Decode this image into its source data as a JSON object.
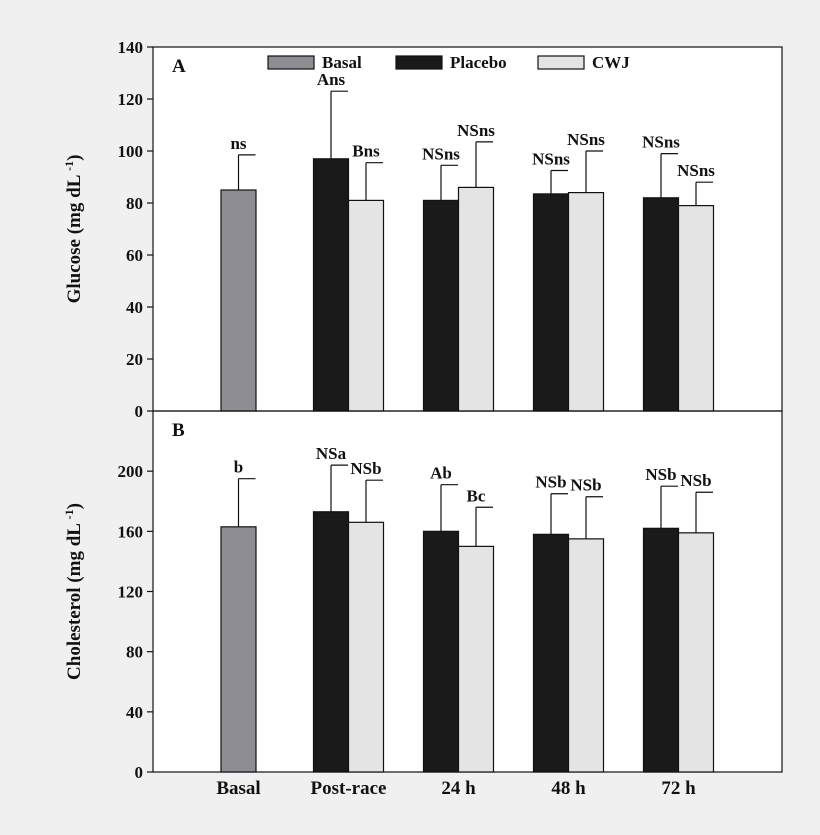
{
  "chart_data": [
    {
      "type": "bar",
      "panel_label": "A",
      "ylabel_text": "Glucose (mg dL",
      "ylabel_sup": "-1",
      "ylabel_close": ")",
      "ylim": [
        0,
        140
      ],
      "yticks": [
        0,
        20,
        40,
        60,
        80,
        100,
        120,
        140
      ],
      "categories": [
        "Basal",
        "Post-race",
        "24 h",
        "48 h",
        "72 h"
      ],
      "legend_placement": "top",
      "grid": false,
      "series": [
        {
          "name": "Basal",
          "values": [
            85,
            null,
            null,
            null,
            null
          ],
          "errors": [
            13.5,
            null,
            null,
            null,
            null
          ],
          "labels": [
            "ns",
            null,
            null,
            null,
            null
          ]
        },
        {
          "name": "Placebo",
          "values": [
            null,
            97,
            81,
            83.5,
            82
          ],
          "errors": [
            null,
            26,
            13.5,
            9,
            17
          ],
          "labels": [
            null,
            "Ans",
            "NSns",
            "NSns",
            "NSns"
          ]
        },
        {
          "name": "CWJ",
          "values": [
            null,
            81,
            86,
            84,
            79
          ],
          "errors": [
            null,
            14.5,
            17.5,
            16,
            9
          ],
          "labels": [
            null,
            "Bns",
            "NSns",
            "NSns",
            "NSns"
          ]
        }
      ]
    },
    {
      "type": "bar",
      "panel_label": "B",
      "ylabel_text": "Cholesterol (mg dL",
      "ylabel_sup": "-1",
      "ylabel_close": ")",
      "ylim": [
        0,
        240
      ],
      "yticks": [
        0,
        40,
        80,
        120,
        160,
        200
      ],
      "categories": [
        "Basal",
        "Post-race",
        "24 h",
        "48 h",
        "72 h"
      ],
      "grid": false,
      "series": [
        {
          "name": "Basal",
          "values": [
            163,
            null,
            null,
            null,
            null
          ],
          "errors": [
            32,
            null,
            null,
            null,
            null
          ],
          "labels": [
            "b",
            null,
            null,
            null,
            null
          ]
        },
        {
          "name": "Placebo",
          "values": [
            null,
            173,
            160,
            158,
            162
          ],
          "errors": [
            null,
            31,
            31,
            27,
            28
          ],
          "labels": [
            null,
            "NSa",
            "Ab",
            "NSb",
            "NSb"
          ]
        },
        {
          "name": "CWJ",
          "values": [
            null,
            166,
            150,
            155,
            159
          ],
          "errors": [
            null,
            28,
            26,
            28,
            27
          ],
          "labels": [
            null,
            "NSb",
            "Bc",
            "NSb",
            "NSb"
          ]
        }
      ]
    }
  ],
  "colors": {
    "Basal": "#8e8d93",
    "Placebo": "#1a1a1a",
    "CWJ": "#e4e4e4",
    "background": "#f0f0f0",
    "plot_area": "#ffffff",
    "ink": "#111111"
  }
}
